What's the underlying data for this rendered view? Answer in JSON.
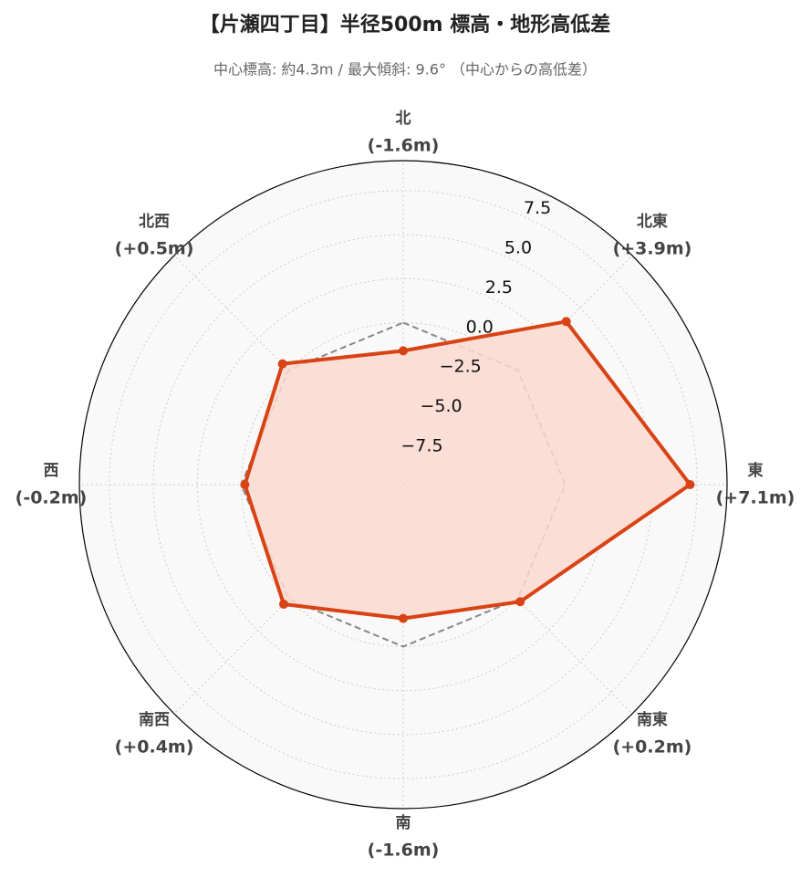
{
  "chart_data": {
    "type": "radar",
    "title": "【片瀬四丁目】半径500m 標高・地形高低差",
    "subtitle": "中心標高: 約4.3m / 最大傾斜: 9.6° （中心からの高低差）",
    "categories": [
      "北",
      "北東",
      "東",
      "南東",
      "南",
      "南西",
      "西",
      "北西"
    ],
    "series": [
      {
        "color": "#d84315",
        "fill": "#fbd9cf",
        "values": [
          -1.6,
          3.9,
          7.1,
          0.2,
          -1.6,
          0.4,
          -0.2,
          0.5
        ],
        "value_labels": [
          "(-1.6m)",
          "(+3.9m)",
          "(+7.1m)",
          "(+0.2m)",
          "(-1.6m)",
          "(+0.4m)",
          "(-0.2m)",
          "(+0.5m)"
        ]
      }
    ],
    "reference_line": 0,
    "ylim": [
      -9.2,
      9.2
    ],
    "yticks": [
      {
        "value": -7.5,
        "label": "−7.5"
      },
      {
        "value": -5,
        "label": "−5.0"
      },
      {
        "value": -2.5,
        "label": "−2.5"
      },
      {
        "value": 0,
        "label": "0.0"
      },
      2.5,
      {
        "value": 5,
        "label": "5.0"
      },
      7.5
    ],
    "grid": true
  }
}
